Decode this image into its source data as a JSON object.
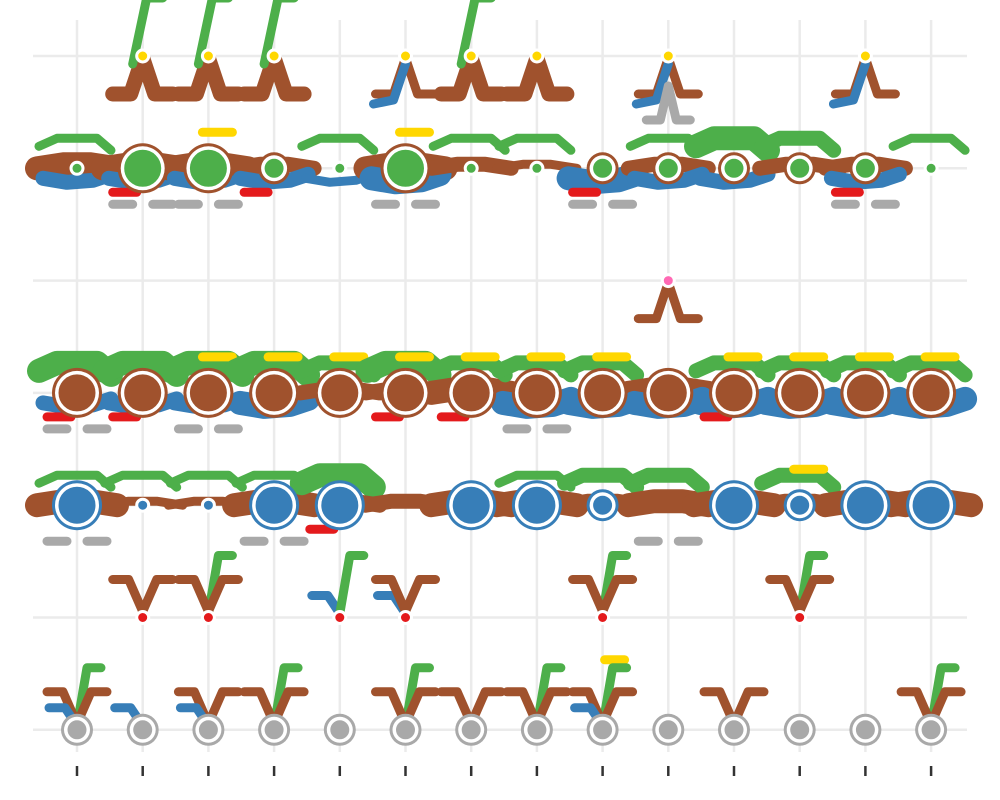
{
  "chart_data": {
    "type": "glyph-grid",
    "title": "",
    "xlabel": "",
    "ylabel": "",
    "x": [
      1,
      2,
      3,
      4,
      5,
      6,
      7,
      8,
      9,
      10,
      11,
      12,
      13,
      14
    ],
    "rows": [
      1,
      2,
      3,
      4,
      5,
      6,
      7
    ],
    "series": [
      {
        "color": "#ffd700"
      },
      {
        "color": "#4daf4a"
      },
      {
        "color": "#ff69b4"
      },
      {
        "color": "#a0522d"
      },
      {
        "color": "#377eb8"
      },
      {
        "color": "#e41a1c"
      },
      {
        "color": "#a9a9a9"
      }
    ],
    "row_hub_color": [
      "#ffd700",
      "#4daf4a",
      "#ff69b4",
      "#a0522d",
      "#377eb8",
      "#e41a1c",
      "#a9a9a9"
    ],
    "hubs": [
      [
        0,
        1,
        1,
        1,
        0,
        1,
        1,
        1,
        0,
        1,
        0,
        0,
        1,
        0
      ],
      [
        1,
        3,
        3,
        2,
        1,
        3,
        1,
        1,
        2,
        2,
        2,
        2,
        2,
        1
      ],
      [
        0,
        0,
        0,
        0,
        0,
        0,
        0,
        0,
        0,
        1,
        0,
        0,
        0,
        0
      ],
      [
        3,
        3,
        3,
        3,
        3,
        3,
        3,
        3,
        3,
        3,
        3,
        3,
        3,
        3
      ],
      [
        3,
        1,
        1,
        3,
        3,
        0,
        3,
        3,
        2,
        0,
        3,
        2,
        3,
        3
      ],
      [
        0,
        1,
        1,
        0,
        1,
        1,
        0,
        0,
        1,
        0,
        0,
        1,
        0,
        0
      ],
      [
        2,
        2,
        2,
        2,
        2,
        2,
        2,
        2,
        2,
        2,
        2,
        2,
        2,
        2
      ]
    ],
    "glyphs": [
      [
        [],
        [
          [
            3,
            2
          ],
          [
            1,
            1
          ]
        ],
        [
          [
            3,
            2
          ],
          [
            1,
            1
          ]
        ],
        [
          [
            3,
            2
          ],
          [
            1,
            1
          ]
        ],
        [],
        [
          [
            3,
            1
          ],
          [
            4,
            1
          ]
        ],
        [
          [
            3,
            2
          ],
          [
            1,
            1
          ]
        ],
        [
          [
            3,
            2
          ]
        ],
        [],
        [
          [
            3,
            1
          ],
          [
            4,
            1
          ],
          [
            6,
            1
          ]
        ],
        [],
        [],
        [
          [
            3,
            1
          ],
          [
            4,
            1
          ]
        ],
        []
      ],
      [
        [
          [
            3,
            3
          ],
          [
            4,
            2
          ],
          [
            1,
            1
          ]
        ],
        [
          [
            3,
            3
          ],
          [
            4,
            2
          ],
          [
            5,
            1
          ],
          [
            6,
            1
          ]
        ],
        [
          [
            3,
            3
          ],
          [
            4,
            2
          ],
          [
            0,
            1
          ],
          [
            6,
            1
          ]
        ],
        [
          [
            3,
            2
          ],
          [
            4,
            2
          ],
          [
            5,
            1
          ]
        ],
        [
          [
            4,
            1
          ],
          [
            1,
            1
          ]
        ],
        [
          [
            3,
            3
          ],
          [
            4,
            3
          ],
          [
            0,
            1
          ],
          [
            6,
            1
          ]
        ],
        [
          [
            3,
            2
          ],
          [
            1,
            1
          ]
        ],
        [
          [
            3,
            1
          ],
          [
            1,
            1
          ]
        ],
        [
          [
            4,
            3
          ],
          [
            5,
            1
          ],
          [
            6,
            1
          ]
        ],
        [
          [
            3,
            2
          ],
          [
            4,
            2
          ],
          [
            1,
            1
          ]
        ],
        [
          [
            1,
            3
          ],
          [
            4,
            2
          ]
        ],
        [
          [
            1,
            2
          ],
          [
            3,
            2
          ]
        ],
        [
          [
            3,
            2
          ],
          [
            4,
            2
          ],
          [
            5,
            1
          ],
          [
            6,
            1
          ]
        ],
        [
          [
            1,
            1
          ]
        ]
      ],
      [
        [],
        [],
        [],
        [],
        [],
        [],
        [],
        [],
        [],
        [
          [
            3,
            1
          ]
        ],
        [],
        [],
        [],
        []
      ],
      [
        [
          [
            1,
            3
          ],
          [
            4,
            2
          ],
          [
            5,
            1
          ],
          [
            6,
            1
          ]
        ],
        [
          [
            1,
            3
          ],
          [
            4,
            2
          ],
          [
            5,
            1
          ]
        ],
        [
          [
            1,
            3
          ],
          [
            4,
            2
          ],
          [
            0,
            1
          ],
          [
            6,
            1
          ]
        ],
        [
          [
            1,
            3
          ],
          [
            4,
            3
          ],
          [
            0,
            1
          ]
        ],
        [
          [
            1,
            2
          ],
          [
            3,
            2
          ],
          [
            0,
            1
          ]
        ],
        [
          [
            1,
            3
          ],
          [
            3,
            2
          ],
          [
            0,
            1
          ],
          [
            5,
            1
          ]
        ],
        [
          [
            1,
            2
          ],
          [
            3,
            3
          ],
          [
            0,
            1
          ],
          [
            5,
            1
          ]
        ],
        [
          [
            1,
            2
          ],
          [
            4,
            3
          ],
          [
            0,
            1
          ],
          [
            6,
            1
          ]
        ],
        [
          [
            1,
            2
          ],
          [
            4,
            3
          ],
          [
            0,
            1
          ]
        ],
        [
          [
            3,
            3
          ],
          [
            4,
            3
          ],
          [
            2,
            1
          ]
        ],
        [
          [
            1,
            2
          ],
          [
            4,
            3
          ],
          [
            0,
            1
          ],
          [
            5,
            1
          ]
        ],
        [
          [
            1,
            2
          ],
          [
            4,
            3
          ],
          [
            0,
            1
          ]
        ],
        [
          [
            1,
            2
          ],
          [
            4,
            3
          ],
          [
            0,
            1
          ]
        ],
        [
          [
            1,
            2
          ],
          [
            4,
            3
          ],
          [
            0,
            1
          ]
        ]
      ],
      [
        [
          [
            3,
            3
          ],
          [
            1,
            1
          ],
          [
            6,
            1
          ]
        ],
        [
          [
            1,
            1
          ],
          [
            3,
            1
          ]
        ],
        [
          [
            1,
            1
          ],
          [
            3,
            1
          ]
        ],
        [
          [
            3,
            3
          ],
          [
            1,
            1
          ],
          [
            6,
            1
          ]
        ],
        [
          [
            1,
            3
          ],
          [
            3,
            2
          ],
          [
            5,
            1
          ]
        ],
        [
          [
            3,
            2
          ]
        ],
        [
          [
            3,
            3
          ]
        ],
        [
          [
            3,
            3
          ],
          [
            1,
            1
          ]
        ],
        [
          [
            1,
            2
          ],
          [
            3,
            2
          ]
        ],
        [
          [
            1,
            2
          ],
          [
            3,
            3
          ],
          [
            6,
            1
          ]
        ],
        [
          [
            3,
            3
          ]
        ],
        [
          [
            1,
            2
          ],
          [
            3,
            2
          ],
          [
            0,
            1
          ]
        ],
        [
          [
            3,
            3
          ]
        ],
        [
          [
            3,
            3
          ]
        ]
      ],
      [
        [],
        [
          [
            3,
            1
          ]
        ],
        [
          [
            1,
            1
          ],
          [
            3,
            1
          ]
        ],
        [],
        [
          [
            4,
            1
          ],
          [
            1,
            1
          ]
        ],
        [
          [
            4,
            1
          ],
          [
            3,
            1
          ]
        ],
        [],
        [],
        [
          [
            1,
            1
          ],
          [
            3,
            1
          ]
        ],
        [],
        [],
        [
          [
            1,
            1
          ],
          [
            3,
            1
          ]
        ],
        [],
        []
      ],
      [
        [
          [
            1,
            1
          ],
          [
            3,
            1
          ],
          [
            4,
            1
          ]
        ],
        [
          [
            4,
            1
          ]
        ],
        [
          [
            3,
            1
          ],
          [
            4,
            1
          ]
        ],
        [
          [
            1,
            1
          ],
          [
            3,
            1
          ]
        ],
        [],
        [
          [
            1,
            1
          ],
          [
            3,
            1
          ]
        ],
        [
          [
            3,
            1
          ]
        ],
        [
          [
            1,
            1
          ],
          [
            3,
            1
          ]
        ],
        [
          [
            0,
            1
          ],
          [
            1,
            1
          ],
          [
            3,
            1
          ],
          [
            4,
            1
          ]
        ],
        [],
        [
          [
            3,
            1
          ]
        ],
        [],
        [],
        [
          [
            1,
            1
          ],
          [
            3,
            1
          ]
        ]
      ]
    ],
    "grid": true,
    "legend": "none"
  }
}
